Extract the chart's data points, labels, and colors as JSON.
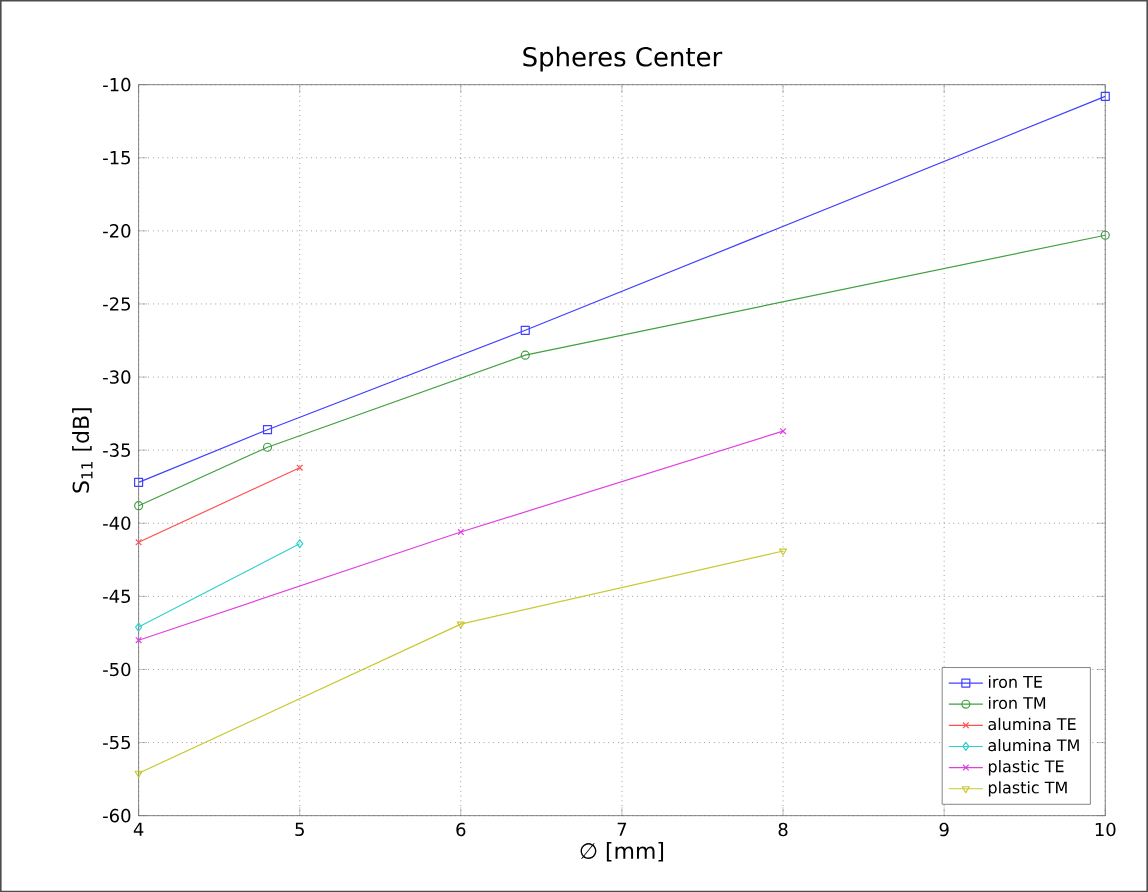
{
  "chart_data": {
    "type": "line",
    "title": "Spheres Center",
    "xlabel": "∅ [mm]",
    "ylabel": "S$_{11}$ [dB]",
    "xlim": [
      4,
      10
    ],
    "xticks": [
      4,
      5,
      6,
      7,
      8,
      9,
      10
    ],
    "ylim": [
      -60,
      -10
    ],
    "yticks": [
      -60,
      -55,
      -50,
      -45,
      -40,
      -35,
      -30,
      -25,
      -20,
      -15,
      -10
    ],
    "grid": true,
    "legend": "bottom right",
    "series": [
      {
        "name": "iron TE",
        "color": "#4040ff",
        "marker": "square",
        "x": [
          4,
          4.8,
          6.4,
          10
        ],
        "values": [
          -37.2,
          -33.6,
          -26.8,
          -10.8
        ]
      },
      {
        "name": "iron TM",
        "color": "#40a040",
        "marker": "circle",
        "x": [
          4,
          4.8,
          6.4,
          10
        ],
        "values": [
          -38.8,
          -34.8,
          -28.5,
          -20.3
        ]
      },
      {
        "name": "alumina TE",
        "color": "#ff5050",
        "marker": "cross",
        "x": [
          4,
          5
        ],
        "values": [
          -41.3,
          -36.2
        ]
      },
      {
        "name": "alumina TM",
        "color": "#30d0d0",
        "marker": "diamond",
        "x": [
          4,
          5
        ],
        "values": [
          -47.1,
          -41.4
        ]
      },
      {
        "name": "plastic TE",
        "color": "#e040e0",
        "marker": "cross",
        "x": [
          4,
          6,
          8
        ],
        "values": [
          -48.0,
          -40.6,
          -33.7
        ]
      },
      {
        "name": "plastic TM",
        "color": "#c8c830",
        "marker": "triangle",
        "x": [
          4,
          6,
          8
        ],
        "values": [
          -57.1,
          -46.9,
          -41.9
        ]
      }
    ]
  }
}
